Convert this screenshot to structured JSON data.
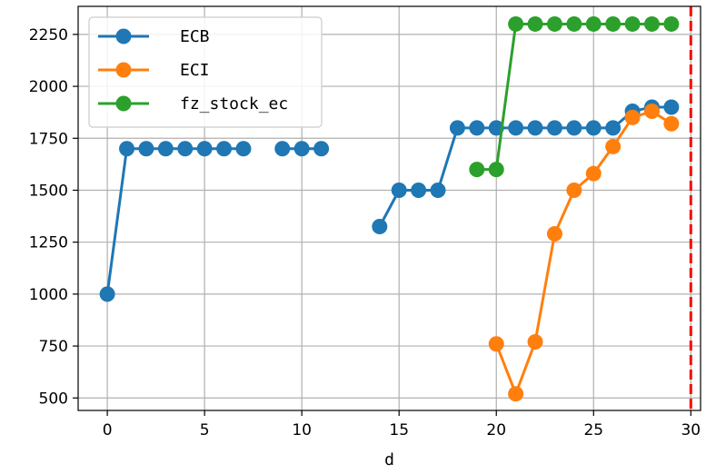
{
  "chart_data": {
    "type": "line",
    "xlabel": "d",
    "ylabel": "",
    "title": "",
    "xlim": [
      -1.5,
      30.5
    ],
    "ylim": [
      440,
      2385
    ],
    "xticks": [
      0,
      5,
      10,
      15,
      20,
      25,
      30
    ],
    "yticks": [
      500,
      750,
      1000,
      1250,
      1500,
      1750,
      2000,
      2250
    ],
    "grid": true,
    "legend_position": "top-left",
    "vline": {
      "x": 30,
      "color": "#ff0000",
      "style": "dashed"
    },
    "series": [
      {
        "name": "ECB",
        "color": "#1f77b4",
        "x": [
          0,
          1,
          2,
          3,
          4,
          5,
          6,
          7,
          8,
          9,
          10,
          11,
          12,
          13,
          14,
          15,
          16,
          17,
          18,
          19,
          20,
          21,
          22,
          23,
          24,
          25,
          26,
          27,
          28,
          29
        ],
        "y": [
          1000,
          1700,
          1700,
          1700,
          1700,
          1700,
          1700,
          1700,
          null,
          1700,
          1700,
          1700,
          null,
          null,
          1325,
          1500,
          1500,
          1500,
          1800,
          1800,
          1800,
          1800,
          1800,
          1800,
          1800,
          1800,
          1800,
          1880,
          1900,
          1900
        ]
      },
      {
        "name": "ECI",
        "color": "#ff7f0e",
        "x": [
          20,
          21,
          22,
          23,
          24,
          25,
          26,
          27,
          28,
          29
        ],
        "y": [
          760,
          520,
          770,
          1290,
          1500,
          1580,
          1710,
          1850,
          1880,
          1820
        ]
      },
      {
        "name": "fz_stock_ec",
        "color": "#2ca02c",
        "x": [
          19,
          20,
          21,
          22,
          23,
          24,
          25,
          26,
          27,
          28,
          29
        ],
        "y": [
          1600,
          1600,
          2300,
          2300,
          2300,
          2300,
          2300,
          2300,
          2300,
          2300,
          2300
        ]
      }
    ]
  }
}
